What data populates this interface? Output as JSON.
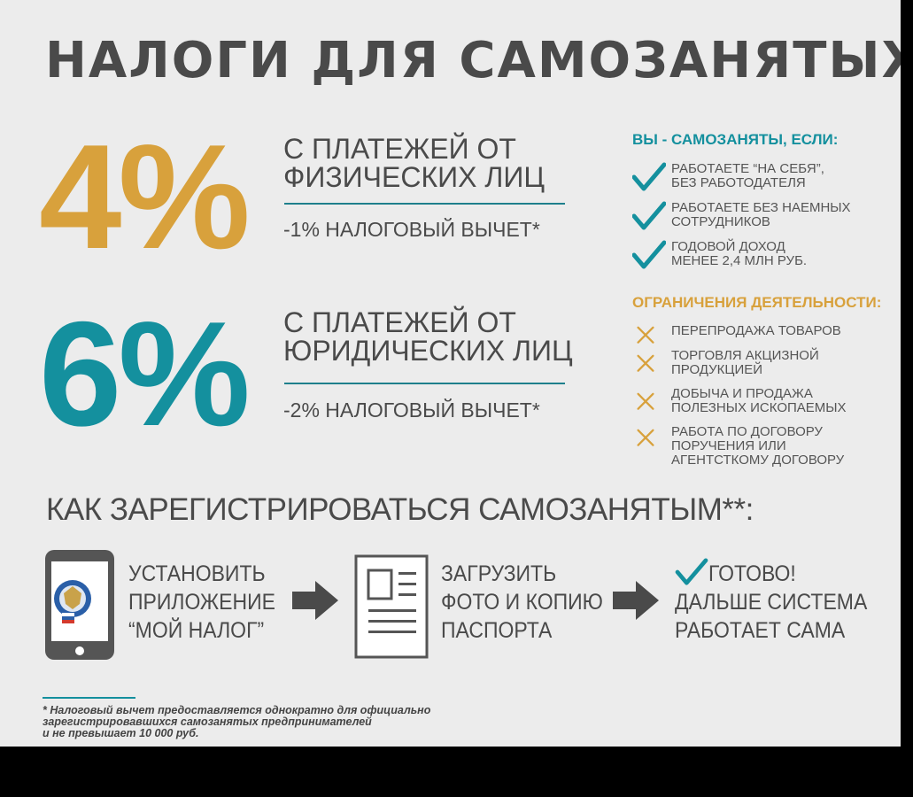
{
  "title": "НАЛОГИ ДЛЯ САМОЗАНЯТЫХ",
  "rates": [
    {
      "percent": "4%",
      "heading_line1": "С ПЛАТЕЖЕЙ ОТ",
      "heading_line2": "ФИЗИЧЕСКИХ ЛИЦ",
      "deduction": "-1% НАЛОГОВЫЙ ВЫЧЕТ*",
      "color": "#d8a13c"
    },
    {
      "percent": "6%",
      "heading_line1": "С ПЛАТЕЖЕЙ ОТ",
      "heading_line2": "ЮРИДИЧЕСКИХ ЛИЦ",
      "deduction": "-2% НАЛОГОВЫЙ ВЫЧЕТ*",
      "color": "#14909e"
    }
  ],
  "conditions": {
    "title": "ВЫ - САМОЗАНЯТЫ, ЕСЛИ:",
    "icon": "check-icon",
    "color": "#14909e",
    "items": [
      {
        "line1": "РАБОТАЕТЕ “НА СЕБЯ”,",
        "line2": "БЕЗ РАБОТОДАТЕЛЯ"
      },
      {
        "line1": "РАБОТАЕТЕ БЕЗ НАЕМНЫХ",
        "line2": "СОТРУДНИКОВ"
      },
      {
        "line1": "ГОДОВОЙ ДОХОД",
        "line2": "МЕНЕЕ 2,4 МЛН РУБ."
      }
    ]
  },
  "restrictions": {
    "title": "ОГРАНИЧЕНИЯ ДЕЯТЕЛЬНОСТИ:",
    "icon": "cross-icon",
    "color": "#d8a13c",
    "items": [
      {
        "line1": "ПЕРЕПРОДАЖА ТОВАРОВ",
        "line2": "",
        "line3": ""
      },
      {
        "line1": "ТОРГОВЛЯ АКЦИЗНОЙ",
        "line2": "ПРОДУКЦИЕЙ",
        "line3": ""
      },
      {
        "line1": "ДОБЫЧА И ПРОДАЖА",
        "line2": "ПОЛЕЗНЫХ ИСКОПАЕМЫХ",
        "line3": ""
      },
      {
        "line1": "РАБОТА ПО ДОГОВОРУ",
        "line2": "ПОРУЧЕНИЯ ИЛИ",
        "line3": "АГЕНТСТКОМУ ДОГОВОРУ"
      }
    ]
  },
  "registration": {
    "title": "КАК ЗАРЕГИСТРИРОВАТЬСЯ САМОЗАНЯТЫМ**:",
    "steps": [
      {
        "icon": "smartphone-icon",
        "line1": "УСТАНОВИТЬ",
        "line2": "ПРИЛОЖЕНИЕ",
        "line3": "“МОЙ НАЛОГ”"
      },
      {
        "icon": "document-icon",
        "line1": "ЗАГРУЗИТЬ",
        "line2": "ФОТО И КОПИЮ",
        "line3": "ПАСПОРТА"
      },
      {
        "icon": "check-icon",
        "line1": "ГОТОВО!",
        "line2": "ДАЛЬШЕ СИСТЕМА",
        "line3": "РАБОТАЕТ САМА"
      }
    ],
    "arrow_icon": "arrow-right-icon"
  },
  "footnote": {
    "line1": "* Налоговый вычет предоставляется однократно для официально",
    "line2": "зарегистрировавшихся самозанятых предпринимателей",
    "line3": "и не превышает 10 000 руб."
  }
}
